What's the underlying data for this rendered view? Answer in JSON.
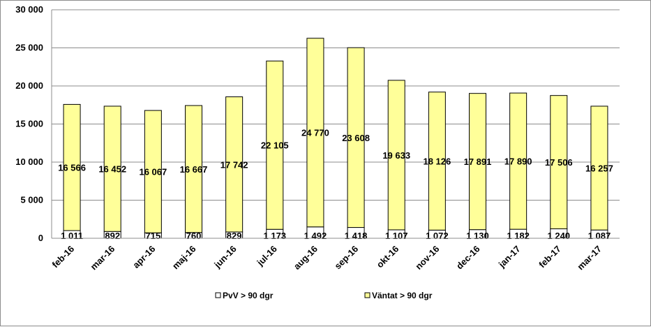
{
  "chart_data": {
    "type": "bar",
    "stacked": true,
    "categories": [
      "feb-16",
      "mar-16",
      "apr-16",
      "maj-16",
      "jun-16",
      "jul-16",
      "aug-16",
      "sep-16",
      "okt-16",
      "nov-16",
      "dec-16",
      "jan-17",
      "feb-17",
      "mar-17"
    ],
    "series": [
      {
        "name": "PvV > 90 dgr",
        "color": "#ffffff",
        "values": [
          1011,
          892,
          715,
          760,
          829,
          1173,
          1492,
          1418,
          1107,
          1072,
          1130,
          1182,
          1240,
          1087
        ],
        "labels": [
          "1 011",
          "892",
          "715",
          "760",
          "829",
          "1 173",
          "1 492",
          "1 418",
          "1 107",
          "1 072",
          "1 130",
          "1 182",
          "1 240",
          "1 087"
        ]
      },
      {
        "name": "Väntat > 90 dgr",
        "color": "#ffff99",
        "values": [
          16566,
          16452,
          16067,
          16667,
          17742,
          22105,
          24770,
          23608,
          19633,
          18126,
          17891,
          17890,
          17506,
          16257
        ],
        "labels": [
          "16 566",
          "16 452",
          "16 067",
          "16 667",
          "17 742",
          "22 105",
          "24 770",
          "23 608",
          "19 633",
          "18 126",
          "17 891",
          "17 890",
          "17 506",
          "16 257"
        ]
      }
    ],
    "ylim": [
      0,
      30000
    ],
    "yticks": [
      0,
      5000,
      10000,
      15000,
      20000,
      25000,
      30000
    ],
    "ytick_labels": [
      "0",
      "5 000",
      "10 000",
      "15 000",
      "20 000",
      "25 000",
      "30 000"
    ],
    "grid": true,
    "legend_position": "bottom"
  }
}
